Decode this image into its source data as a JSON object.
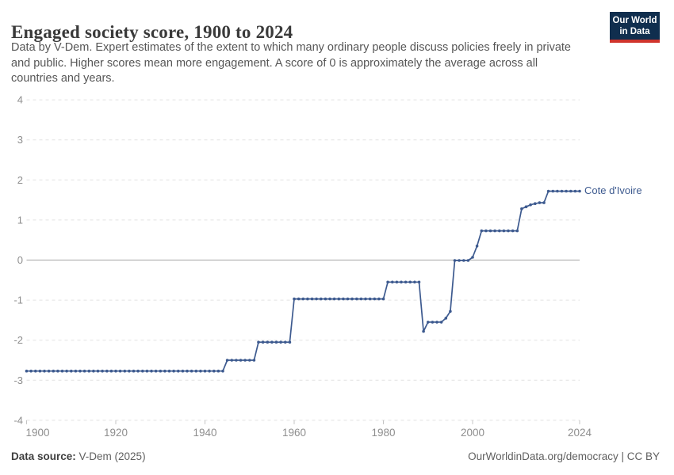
{
  "header": {
    "title": "Engaged society score, 1900 to 2024",
    "subtitle_lines": [
      "Data by V-Dem. Expert estimates of the extent to which many ordinary people discuss policies freely in private",
      "and public. Higher scores mean more engagement. A score of 0 is approximately the average across all",
      "countries and years."
    ],
    "logo": {
      "line1": "Our World",
      "line2": "in Data",
      "bg_color": "#102e4e",
      "accent_color": "#d0342c"
    }
  },
  "chart_data": {
    "type": "line",
    "title": "Engaged society score, 1900 to 2024",
    "xlabel": "",
    "ylabel": "",
    "x_range": [
      1900,
      2024
    ],
    "y_range": [
      -4,
      4
    ],
    "x_ticks": [
      1900,
      1920,
      1940,
      1960,
      1980,
      2000,
      2024
    ],
    "y_ticks": [
      4,
      3,
      2,
      1,
      0,
      -1,
      -2,
      -3,
      -4
    ],
    "grid": "horizontal dashed, solid zero line",
    "legend_position": "end-of-line label",
    "colors": {
      "line": "#3d5a8f",
      "grid": "#e2e2e2",
      "zero_line": "#a3a3a3",
      "axis_text": "#8e8e8e",
      "tick_mark": "#c4c4c4"
    },
    "series": [
      {
        "name": "Cote d'Ivoire",
        "color": "#3d5a8f",
        "start_year": 1900,
        "values": [
          -2.77,
          -2.77,
          -2.77,
          -2.77,
          -2.77,
          -2.77,
          -2.77,
          -2.77,
          -2.77,
          -2.77,
          -2.77,
          -2.77,
          -2.77,
          -2.77,
          -2.77,
          -2.77,
          -2.77,
          -2.77,
          -2.77,
          -2.77,
          -2.77,
          -2.77,
          -2.77,
          -2.77,
          -2.77,
          -2.77,
          -2.77,
          -2.77,
          -2.77,
          -2.77,
          -2.77,
          -2.77,
          -2.77,
          -2.77,
          -2.77,
          -2.77,
          -2.77,
          -2.77,
          -2.77,
          -2.77,
          -2.77,
          -2.77,
          -2.77,
          -2.77,
          -2.77,
          -2.5,
          -2.5,
          -2.5,
          -2.5,
          -2.5,
          -2.5,
          -2.5,
          -2.05,
          -2.05,
          -2.05,
          -2.05,
          -2.05,
          -2.05,
          -2.05,
          -2.05,
          -0.97,
          -0.97,
          -0.97,
          -0.97,
          -0.97,
          -0.97,
          -0.97,
          -0.97,
          -0.97,
          -0.97,
          -0.97,
          -0.97,
          -0.97,
          -0.97,
          -0.97,
          -0.97,
          -0.97,
          -0.97,
          -0.97,
          -0.97,
          -0.97,
          -0.55,
          -0.55,
          -0.55,
          -0.55,
          -0.55,
          -0.55,
          -0.55,
          -0.55,
          -1.78,
          -1.55,
          -1.55,
          -1.55,
          -1.55,
          -1.45,
          -1.28,
          -0.01,
          -0.01,
          -0.01,
          -0.01,
          0.07,
          0.35,
          0.73,
          0.73,
          0.73,
          0.73,
          0.73,
          0.73,
          0.73,
          0.73,
          0.73,
          1.28,
          1.33,
          1.38,
          1.41,
          1.43,
          1.43,
          1.72,
          1.72,
          1.72,
          1.72,
          1.72,
          1.72,
          1.72,
          1.72
        ]
      }
    ]
  },
  "footer": {
    "source_label": "Data source:",
    "source_value": " V-Dem (2025)",
    "credit": "OurWorldinData.org/democracy | CC BY"
  }
}
